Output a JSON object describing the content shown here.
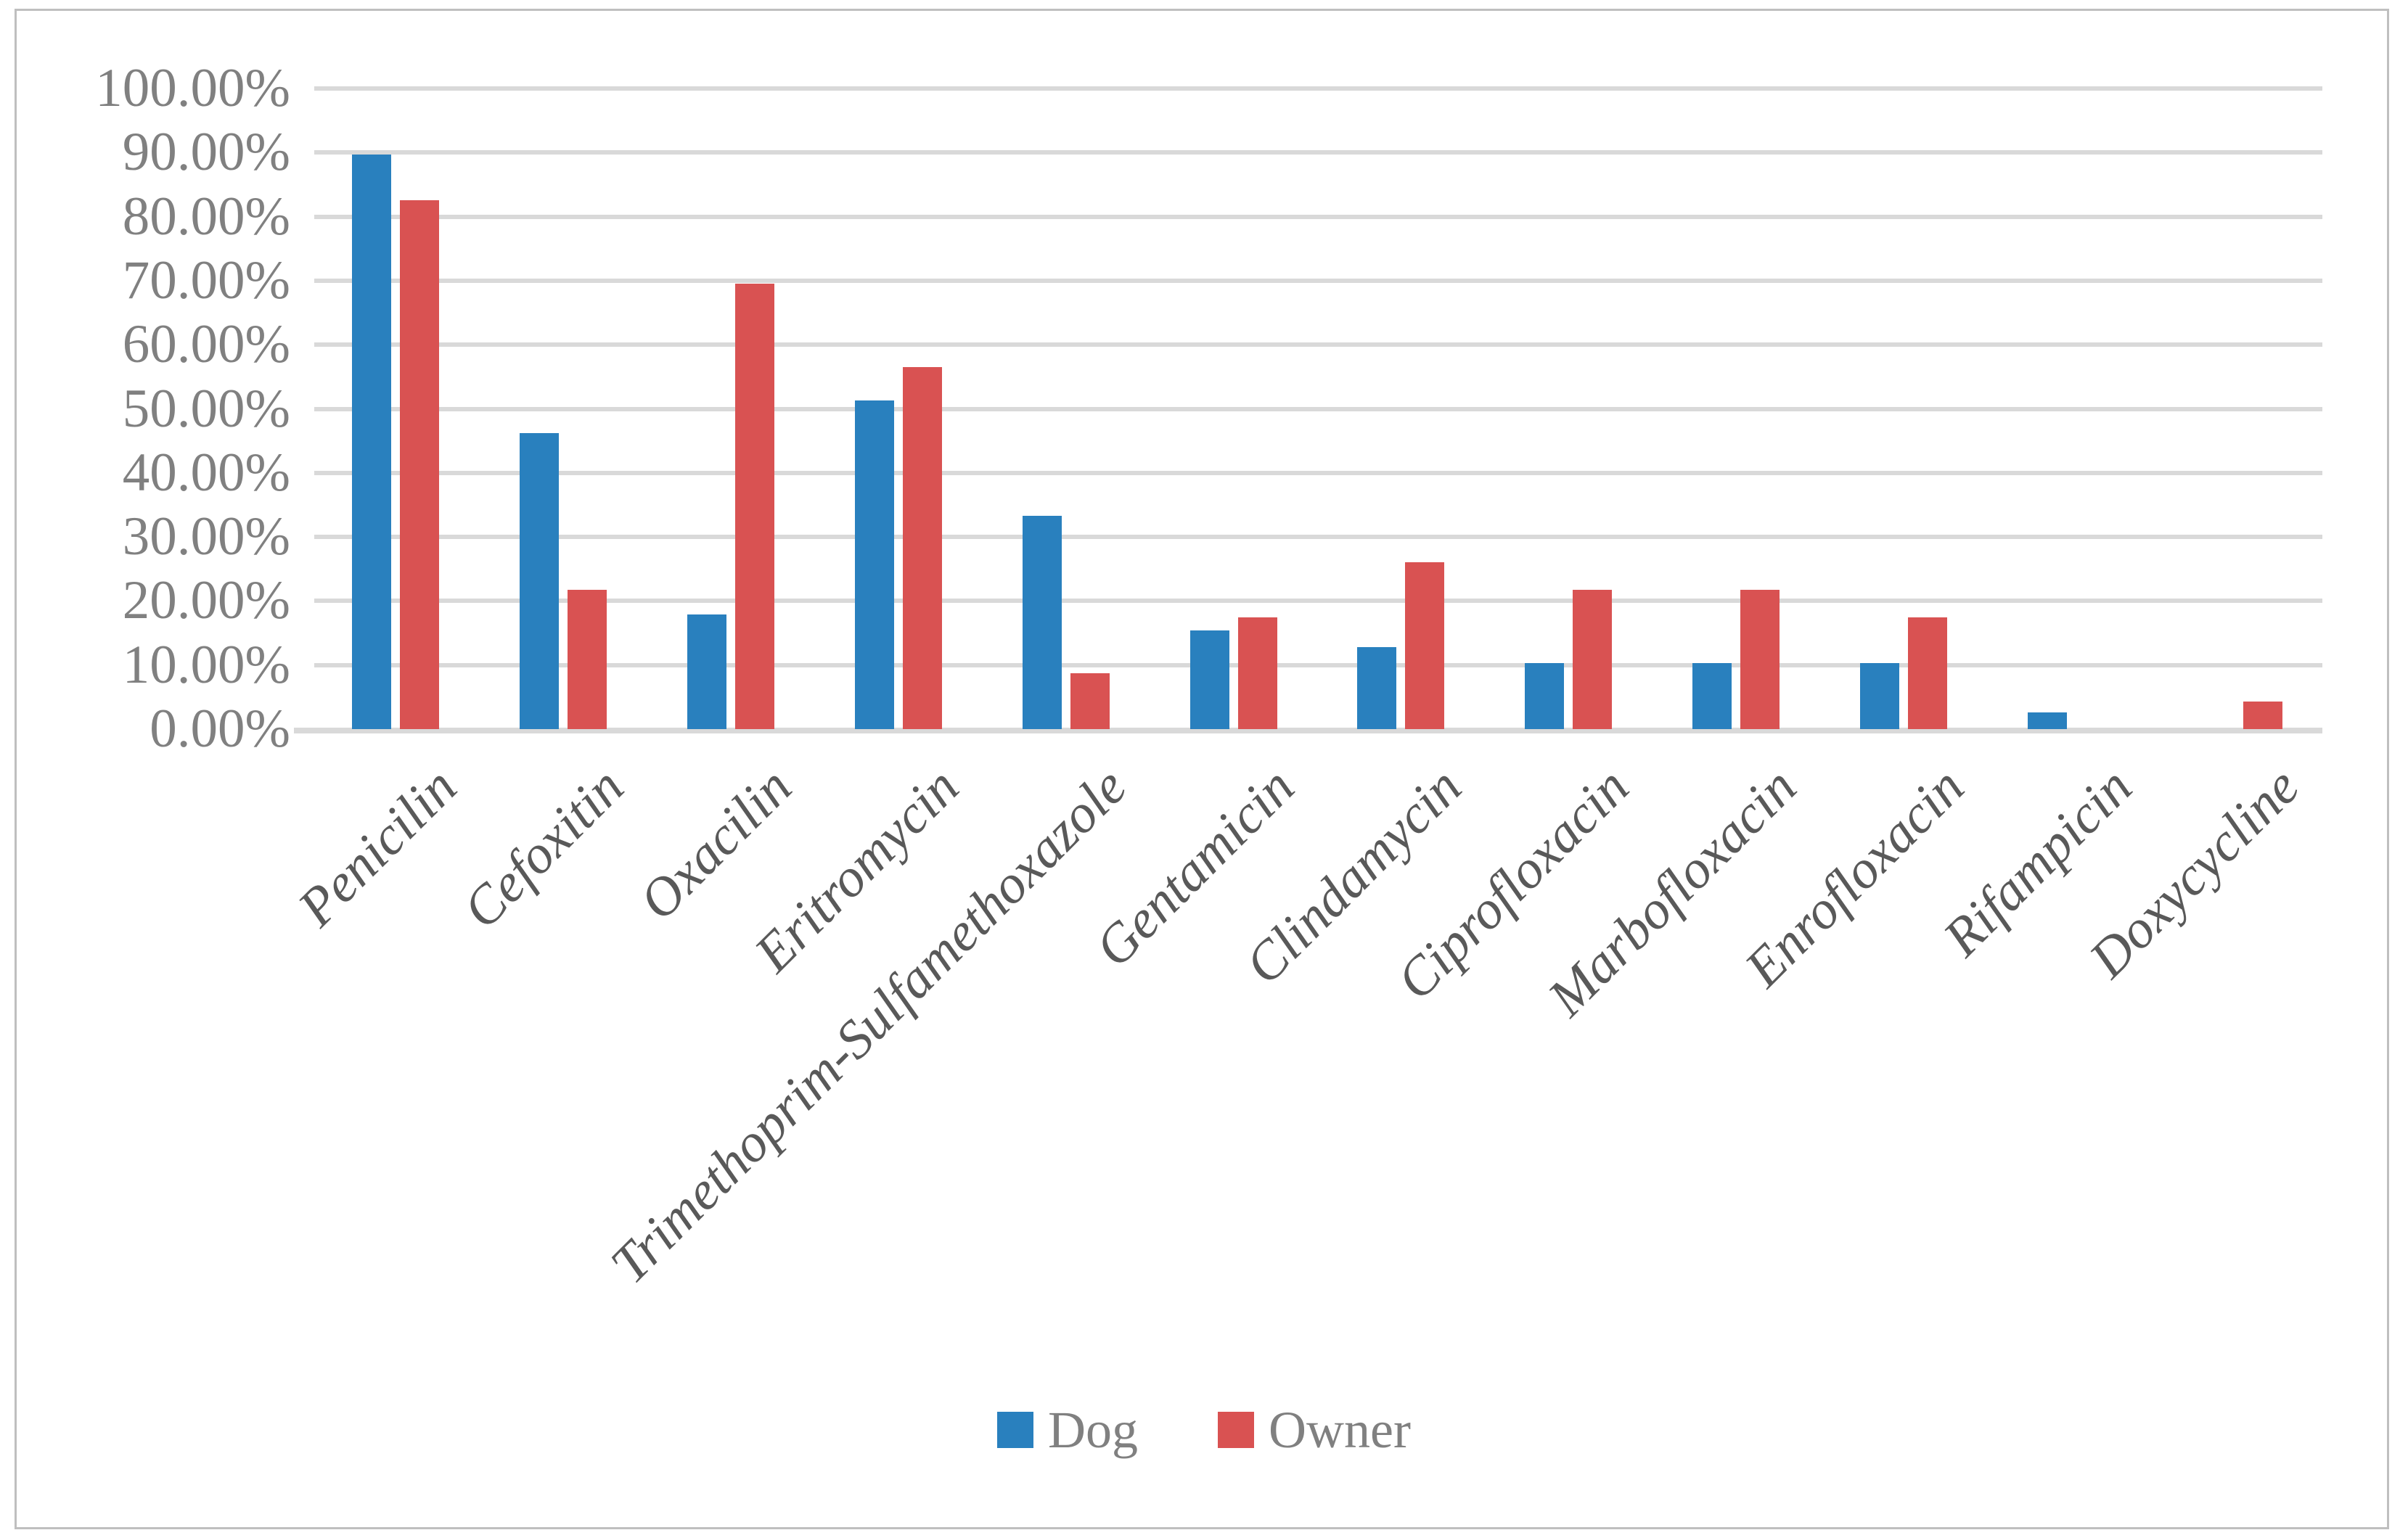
{
  "chart_data": {
    "type": "bar",
    "title": "",
    "categories": [
      "Penicilin",
      "Cefoxitin",
      "Oxacilin",
      "Eritromycin",
      "Trimethoprim-Sulfamethoxazole",
      "Gentamicin",
      "Clindamycin",
      "Ciprofloxacin",
      "Marbofloxacin",
      "Enrofloxacin",
      "Rifampicin",
      "Doxycycline"
    ],
    "series": [
      {
        "name": "Dog",
        "color": "#2980BE",
        "values": [
          89.74,
          46.15,
          17.95,
          51.28,
          33.33,
          15.38,
          12.82,
          10.26,
          10.26,
          10.26,
          2.56,
          0
        ]
      },
      {
        "name": "Owner",
        "color": "#D95252",
        "values": [
          82.61,
          21.74,
          69.57,
          56.52,
          8.7,
          17.39,
          26.09,
          21.74,
          21.74,
          17.39,
          0,
          4.35
        ]
      }
    ],
    "y_axis": {
      "min": 0,
      "max": 100,
      "step": 10,
      "tick_labels": [
        "0.00%",
        "10.00%",
        "20.00%",
        "30.00%",
        "40.00%",
        "50.00%",
        "60.00%",
        "70.00%",
        "80.00%",
        "90.00%",
        "100.00%"
      ]
    },
    "legend": {
      "position": "bottom",
      "entries": [
        "Dog",
        "Owner"
      ]
    },
    "grid": true,
    "styles": {
      "background": "#FFFFFF",
      "frame_border_color": "#BFBFBF",
      "gridline_color": "#D9D9D9",
      "axis_line_color": "#D9D9D9",
      "y_tick_text_color": "#808080",
      "x_label_text_color": "#595959",
      "legend_text_color": "#808080"
    }
  }
}
